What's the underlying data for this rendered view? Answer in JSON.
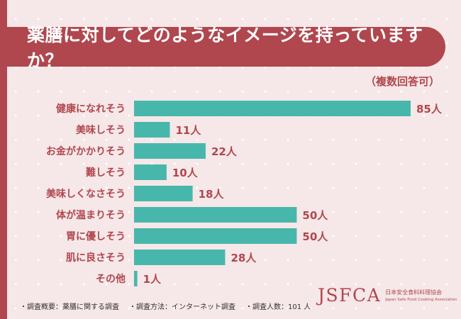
{
  "header": {
    "title": "薬膳に対してどのようなイメージを持っていますか？",
    "subtitle": "（複数回答可）"
  },
  "chart_data": {
    "type": "bar",
    "orientation": "horizontal",
    "categories": [
      "健康になれそう",
      "美味しそう",
      "お金がかかりそう",
      "難しそう",
      "美味しくなさそう",
      "体が温まりそう",
      "胃に優しそう",
      "肌に良さそう",
      "その他"
    ],
    "values": [
      85,
      11,
      22,
      10,
      18,
      50,
      50,
      28,
      1
    ],
    "value_labels": [
      "85人",
      "11人",
      "22人",
      "10人",
      "18人",
      "50人",
      "50人",
      "28人",
      "1人"
    ],
    "unit": "人",
    "xlim": [
      0,
      85
    ],
    "grid": false,
    "bar_color": "#48b7ab"
  },
  "footnote": {
    "items": [
      "・調査概要：薬膳に関する調査",
      "・調査方法：インターネット調査",
      "・調査人数：101 人"
    ]
  },
  "logo": {
    "mark": "JSFCA",
    "name_jp": "日本安全食料料理協会",
    "name_en": "Japan Safe Food Cooking Association"
  },
  "colors": {
    "accent": "#b0474e",
    "bar": "#48b7ab",
    "background": "#f6e7e8"
  }
}
